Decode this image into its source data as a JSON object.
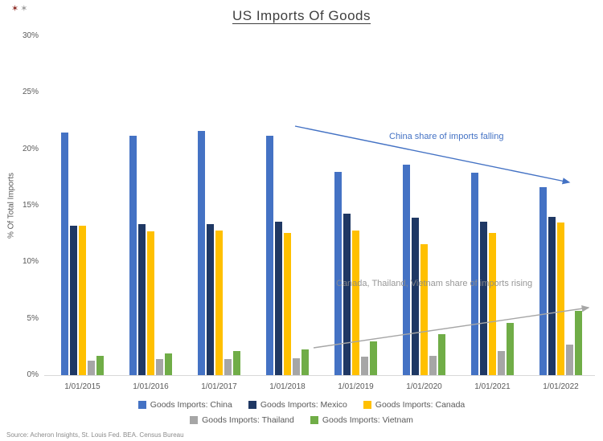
{
  "title": "US Imports Of Goods",
  "logo": {
    "glyph1": "✶",
    "glyph2": "✶"
  },
  "ylabel": "% Of Total Imports",
  "annotations": {
    "falling": "China share of imports falling",
    "rising": "Canada, Thailand, Vietnam share of imports rising"
  },
  "source": "Source: Acheron Insights, St. Louis Fed. BEA. Census Bureau",
  "colors": {
    "china": "#4472C4",
    "mexico": "#1F3864",
    "canada": "#FFC000",
    "thailand": "#A6A6A6",
    "vietnam": "#70AD47",
    "falling_annotation": "#4472C4",
    "rising_annotation": "#8C8C8C",
    "axis_text": "#595959"
  },
  "chart_data": {
    "type": "bar",
    "title": "US Imports Of Goods",
    "xlabel": "",
    "ylabel": "% Of Total Imports",
    "ylim": [
      0,
      30
    ],
    "yticks": [
      "0%",
      "5%",
      "10%",
      "15%",
      "20%",
      "25%",
      "30%"
    ],
    "grid": false,
    "legend_position": "bottom",
    "categories": [
      "1/01/2015",
      "1/01/2016",
      "1/01/2017",
      "1/01/2018",
      "1/01/2019",
      "1/01/2020",
      "1/01/2021",
      "1/01/2022"
    ],
    "series": [
      {
        "name": "Goods Imports: China",
        "color": "#4472C4",
        "values": [
          21.5,
          21.2,
          21.6,
          21.2,
          18.0,
          18.6,
          17.9,
          16.6
        ]
      },
      {
        "name": "Goods Imports: Mexico",
        "color": "#1F3864",
        "values": [
          13.2,
          13.4,
          13.4,
          13.6,
          14.3,
          13.9,
          13.6,
          14.0
        ]
      },
      {
        "name": "Goods Imports: Canada",
        "color": "#FFC000",
        "values": [
          13.2,
          12.7,
          12.8,
          12.6,
          12.8,
          11.6,
          12.6,
          13.5
        ]
      },
      {
        "name": "Goods Imports: Thailand",
        "color": "#A6A6A6",
        "values": [
          1.3,
          1.4,
          1.4,
          1.5,
          1.6,
          1.7,
          2.1,
          2.7
        ]
      },
      {
        "name": "Goods Imports: Vietnam",
        "color": "#70AD47",
        "values": [
          1.7,
          1.9,
          2.1,
          2.3,
          3.0,
          3.6,
          4.6,
          5.7
        ]
      }
    ]
  }
}
